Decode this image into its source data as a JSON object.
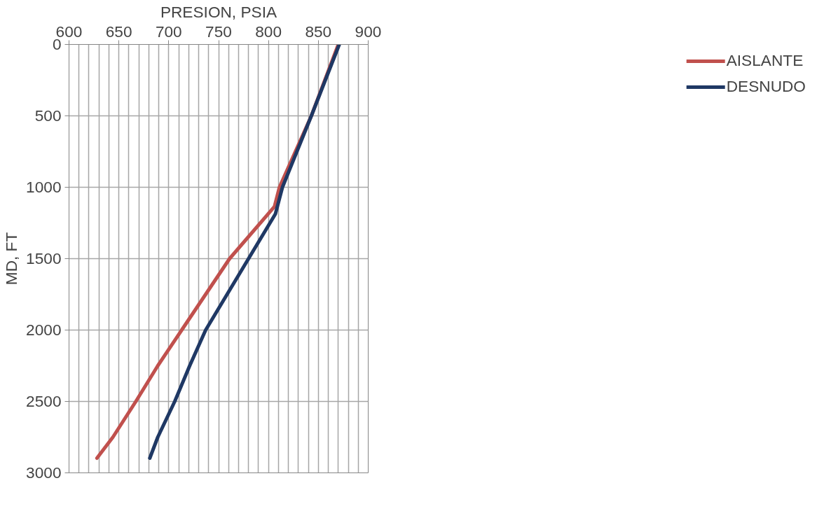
{
  "chart_data": {
    "type": "line",
    "xlabel": "PRESION, PSIA",
    "ylabel": "MD, FT",
    "xlim": [
      600,
      900
    ],
    "xticks": [
      600,
      {
        "value": 610,
        "label": null
      },
      {
        "value": 620,
        "label": null
      },
      {
        "value": 630,
        "label": null
      },
      {
        "value": 640,
        "label": null
      },
      650,
      {
        "value": 660,
        "label": null
      },
      {
        "value": 670,
        "label": null
      },
      {
        "value": 680,
        "label": null
      },
      {
        "value": 690,
        "label": null
      },
      700,
      {
        "value": 710,
        "label": null
      },
      {
        "value": 720,
        "label": null
      },
      {
        "value": 730,
        "label": null
      },
      {
        "value": 740,
        "label": null
      },
      750,
      {
        "value": 760,
        "label": null
      },
      {
        "value": 770,
        "label": null
      },
      {
        "value": 780,
        "label": null
      },
      {
        "value": 790,
        "label": null
      },
      800,
      {
        "value": 810,
        "label": null
      },
      {
        "value": 820,
        "label": null
      },
      {
        "value": 830,
        "label": null
      },
      {
        "value": 840,
        "label": null
      },
      850,
      {
        "value": 860,
        "label": null
      },
      {
        "value": 870,
        "label": null
      },
      {
        "value": 880,
        "label": null
      },
      {
        "value": 890,
        "label": null
      },
      900
    ],
    "ylim": [
      3000,
      0
    ],
    "yticks": [
      0,
      500,
      1000,
      1500,
      2000,
      2500,
      3000
    ],
    "grid": true,
    "legend": "right",
    "marker": "none",
    "line_style": "solid",
    "series": [
      {
        "name": "AISLANTE",
        "color": "#c0504d",
        "x": [
          870,
          843,
          811,
          806,
          761,
          713,
          689,
          667,
          644,
          628
        ],
        "values": [
          0,
          500,
          1000,
          1135,
          1500,
          2000,
          2250,
          2500,
          2750,
          2897
        ]
      },
      {
        "name": "DESNUDO",
        "color": "#1f3864",
        "x": [
          871,
          843,
          814,
          807,
          780,
          737,
          721,
          706,
          689,
          681
        ],
        "values": [
          0,
          500,
          1000,
          1186,
          1500,
          2000,
          2250,
          2500,
          2750,
          2897
        ]
      }
    ]
  }
}
